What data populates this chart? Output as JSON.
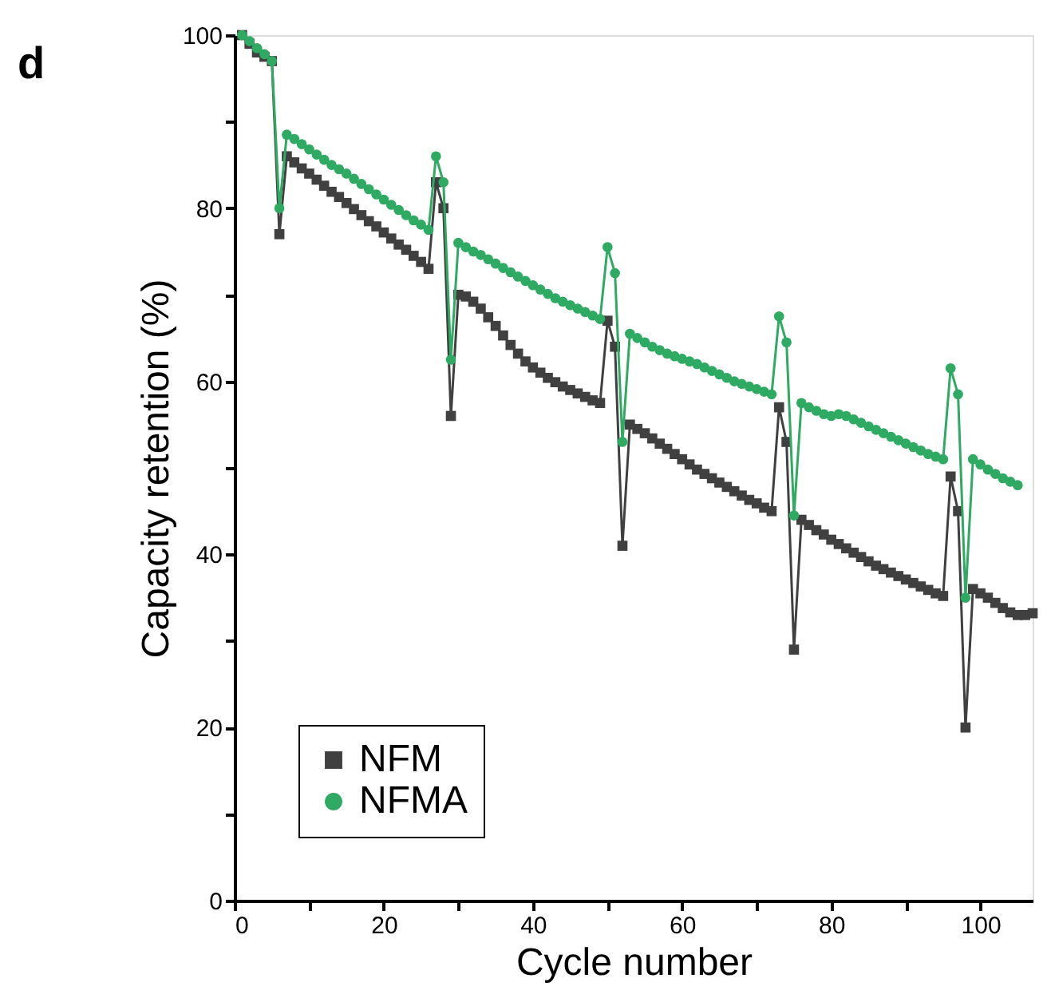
{
  "chart_data": {
    "type": "line",
    "title": "d",
    "xlabel": "Cycle number",
    "ylabel": "Capacity retention (%)",
    "xlim": [
      0,
      107
    ],
    "xticks": [
      0,
      {
        "value": 10,
        "label": null
      },
      20,
      {
        "value": 30,
        "label": null
      },
      40,
      {
        "value": 50,
        "label": null
      },
      60,
      {
        "value": 70,
        "label": null
      },
      80,
      {
        "value": 90,
        "label": null
      },
      100
    ],
    "ylim": [
      0,
      100
    ],
    "yticks": [
      0,
      {
        "value": 10,
        "label": null
      },
      20,
      {
        "value": 30,
        "label": null
      },
      40,
      {
        "value": 50,
        "label": null
      },
      60,
      {
        "value": 70,
        "label": null
      },
      80,
      {
        "value": 90,
        "label": null
      },
      100
    ],
    "grid": false,
    "legend": "bottom left",
    "line_style": "solid",
    "series": [
      {
        "name": "NFM",
        "color": "#404040",
        "marker": "square",
        "x": [
          1,
          2,
          3,
          4,
          5,
          6,
          7,
          8,
          9,
          10,
          11,
          12,
          13,
          14,
          15,
          16,
          17,
          18,
          19,
          20,
          21,
          22,
          23,
          24,
          25,
          26,
          27,
          28,
          29,
          30,
          31,
          32,
          33,
          34,
          35,
          36,
          37,
          38,
          39,
          40,
          41,
          42,
          43,
          44,
          45,
          46,
          47,
          48,
          49,
          50,
          51,
          52,
          53,
          54,
          55,
          56,
          57,
          58,
          59,
          60,
          61,
          62,
          63,
          64,
          65,
          66,
          67,
          68,
          69,
          70,
          71,
          72,
          73,
          74,
          75,
          76,
          77,
          78,
          79,
          80,
          81,
          82,
          83,
          84,
          85,
          86,
          87,
          88,
          89,
          90,
          91,
          92,
          93,
          94,
          95,
          96,
          97,
          98,
          99,
          100,
          101,
          102,
          103,
          104,
          105,
          106,
          107
        ],
        "values": [
          100,
          99,
          98,
          97.5,
          97,
          77,
          86,
          85.3,
          84.6,
          84,
          83.3,
          82.6,
          81.9,
          81.3,
          80.6,
          79.9,
          79.2,
          78.5,
          77.9,
          77.2,
          76.5,
          75.8,
          75.2,
          74.5,
          73.8,
          73,
          83,
          80,
          56,
          70,
          69.8,
          69.2,
          68.4,
          67.4,
          66.4,
          65.3,
          64.2,
          63.2,
          62.3,
          61.6,
          61,
          60.4,
          59.9,
          59.4,
          59,
          58.6,
          58.2,
          57.8,
          57.5,
          67,
          64,
          41,
          55,
          54.5,
          54,
          53.4,
          52.8,
          52.2,
          51.6,
          51,
          50.4,
          49.8,
          49.3,
          48.8,
          48.3,
          47.8,
          47.3,
          46.8,
          46.3,
          45.9,
          45.4,
          45,
          57,
          53,
          29,
          44,
          43.4,
          42.8,
          42.3,
          41.7,
          41.2,
          40.7,
          40.2,
          39.7,
          39.2,
          38.7,
          38.3,
          37.9,
          37.5,
          37.1,
          36.7,
          36.3,
          35.9,
          35.5,
          35.2,
          49,
          45,
          20,
          36,
          35.5,
          35,
          34.4,
          33.8,
          33.3,
          33,
          33,
          33.2
        ]
      },
      {
        "name": "NFMA",
        "color": "#2eaa62",
        "marker": "circle",
        "x": [
          1,
          2,
          3,
          4,
          5,
          6,
          7,
          8,
          9,
          10,
          11,
          12,
          13,
          14,
          15,
          16,
          17,
          18,
          19,
          20,
          21,
          22,
          23,
          24,
          25,
          26,
          27,
          28,
          29,
          30,
          31,
          32,
          33,
          34,
          35,
          36,
          37,
          38,
          39,
          40,
          41,
          42,
          43,
          44,
          45,
          46,
          47,
          48,
          49,
          50,
          51,
          52,
          53,
          54,
          55,
          56,
          57,
          58,
          59,
          60,
          61,
          62,
          63,
          64,
          65,
          66,
          67,
          68,
          69,
          70,
          71,
          72,
          73,
          74,
          75,
          76,
          77,
          78,
          79,
          80,
          81,
          82,
          83,
          84,
          85,
          86,
          87,
          88,
          89,
          90,
          91,
          92,
          93,
          94,
          95,
          96,
          97,
          98,
          99,
          100,
          101,
          102,
          103,
          104,
          105
        ],
        "values": [
          100,
          99.3,
          98.5,
          97.8,
          97,
          80,
          88.5,
          88,
          87.4,
          86.8,
          86.2,
          85.6,
          85,
          84.5,
          84,
          83.4,
          82.8,
          82.2,
          81.6,
          81,
          80.4,
          79.8,
          79.2,
          78.6,
          78.1,
          77.5,
          86,
          83,
          62.5,
          76,
          75.5,
          75,
          74.6,
          74.1,
          73.6,
          73.1,
          72.6,
          72.1,
          71.6,
          71.1,
          70.6,
          70.1,
          69.6,
          69.2,
          68.8,
          68.4,
          68,
          67.6,
          67.2,
          75.5,
          72.5,
          53,
          65.5,
          65,
          64.5,
          64,
          63.6,
          63.2,
          62.9,
          62.6,
          62.3,
          62,
          61.6,
          61.2,
          60.8,
          60.4,
          60,
          59.7,
          59.4,
          59.1,
          58.8,
          58.5,
          67.5,
          64.5,
          44.5,
          57.5,
          57,
          56.6,
          56.2,
          56,
          56.2,
          56,
          55.6,
          55.2,
          54.8,
          54.4,
          54,
          53.6,
          53.2,
          52.8,
          52.4,
          52,
          51.6,
          51.3,
          51,
          61.5,
          58.5,
          35,
          51,
          50.4,
          49.8,
          49.3,
          48.8,
          48.4,
          48
        ]
      }
    ]
  }
}
